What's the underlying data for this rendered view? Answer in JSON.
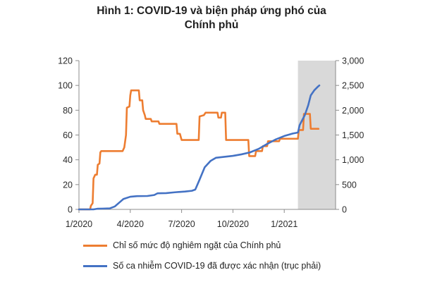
{
  "chart_data": {
    "type": "line",
    "title_line1": "Hình 1: COVID-19 và biện pháp ứng phó của",
    "title_line2": "Chính phủ",
    "x_tick_labels": [
      "1/2020",
      "4/2020",
      "7/2020",
      "10/2020",
      "1/2021"
    ],
    "y_left": {
      "ylim": [
        0,
        120
      ],
      "ticks": [
        0,
        20,
        40,
        60,
        80,
        100,
        120
      ]
    },
    "y_right": {
      "ylim": [
        0,
        3000
      ],
      "ticks": [
        "0",
        "500",
        "1,000",
        "1,500",
        "2,000",
        "2,500",
        "3,000"
      ],
      "tick_values": [
        0,
        500,
        1000,
        1500,
        2000,
        2500,
        3000
      ]
    },
    "shaded_region": {
      "from_month": 12.8,
      "to_month": 15.0,
      "color": "#d9d9d9"
    },
    "series": [
      {
        "name": "Chỉ số mức độ nghiêm ngặt của Chính phủ",
        "axis": "left",
        "color": "#ed7d31",
        "points": [
          [
            0,
            0
          ],
          [
            0.65,
            0
          ],
          [
            0.7,
            3
          ],
          [
            0.8,
            5
          ],
          [
            0.85,
            25
          ],
          [
            0.95,
            28
          ],
          [
            1.05,
            28
          ],
          [
            1.1,
            36
          ],
          [
            1.2,
            37
          ],
          [
            1.25,
            46
          ],
          [
            1.3,
            47
          ],
          [
            2.55,
            47
          ],
          [
            2.65,
            50
          ],
          [
            2.75,
            60
          ],
          [
            2.8,
            82
          ],
          [
            2.95,
            83
          ],
          [
            3.0,
            92
          ],
          [
            3.05,
            96
          ],
          [
            3.5,
            96
          ],
          [
            3.55,
            88
          ],
          [
            3.7,
            88
          ],
          [
            3.75,
            80
          ],
          [
            3.85,
            76
          ],
          [
            3.9,
            73
          ],
          [
            4.2,
            73
          ],
          [
            4.25,
            71
          ],
          [
            4.65,
            71
          ],
          [
            4.7,
            69
          ],
          [
            5.7,
            69
          ],
          [
            5.75,
            61
          ],
          [
            5.9,
            61
          ],
          [
            6.0,
            56
          ],
          [
            7.0,
            56
          ],
          [
            7.05,
            75
          ],
          [
            7.3,
            76
          ],
          [
            7.4,
            78
          ],
          [
            8.1,
            78
          ],
          [
            8.15,
            74
          ],
          [
            8.3,
            74
          ],
          [
            8.35,
            78
          ],
          [
            8.55,
            78
          ],
          [
            8.6,
            56
          ],
          [
            9.9,
            56
          ],
          [
            9.95,
            43
          ],
          [
            10.3,
            43
          ],
          [
            10.35,
            47
          ],
          [
            10.7,
            47
          ],
          [
            10.75,
            51
          ],
          [
            11.0,
            51
          ],
          [
            11.05,
            55
          ],
          [
            11.7,
            55
          ],
          [
            11.75,
            57
          ],
          [
            12.8,
            57
          ],
          [
            12.85,
            64
          ],
          [
            13.1,
            64
          ],
          [
            13.15,
            77
          ],
          [
            13.5,
            77
          ],
          [
            13.55,
            65
          ],
          [
            14.0,
            65
          ]
        ]
      },
      {
        "name": "Số ca nhiễm COVID-19 đã được xác nhận (trục phải)",
        "axis": "right",
        "color": "#4472c4",
        "points": [
          [
            0,
            0
          ],
          [
            0.85,
            0
          ],
          [
            1.1,
            14
          ],
          [
            1.4,
            16
          ],
          [
            1.8,
            20
          ],
          [
            2.1,
            60
          ],
          [
            2.4,
            150
          ],
          [
            2.6,
            210
          ],
          [
            3.0,
            255
          ],
          [
            3.4,
            268
          ],
          [
            4.0,
            270
          ],
          [
            4.4,
            290
          ],
          [
            4.6,
            325
          ],
          [
            5.1,
            328
          ],
          [
            5.6,
            345
          ],
          [
            6.2,
            360
          ],
          [
            6.6,
            375
          ],
          [
            6.8,
            400
          ],
          [
            7.05,
            600
          ],
          [
            7.35,
            850
          ],
          [
            7.7,
            980
          ],
          [
            8.0,
            1040
          ],
          [
            8.5,
            1060
          ],
          [
            9.0,
            1080
          ],
          [
            9.5,
            1110
          ],
          [
            10.0,
            1150
          ],
          [
            10.5,
            1220
          ],
          [
            11.0,
            1320
          ],
          [
            11.5,
            1410
          ],
          [
            12.0,
            1480
          ],
          [
            12.5,
            1530
          ],
          [
            12.8,
            1550
          ],
          [
            12.9,
            1700
          ],
          [
            13.05,
            1800
          ],
          [
            13.2,
            1900
          ],
          [
            13.4,
            2100
          ],
          [
            13.55,
            2300
          ],
          [
            13.75,
            2400
          ],
          [
            13.95,
            2470
          ],
          [
            14.05,
            2500
          ]
        ]
      }
    ]
  }
}
